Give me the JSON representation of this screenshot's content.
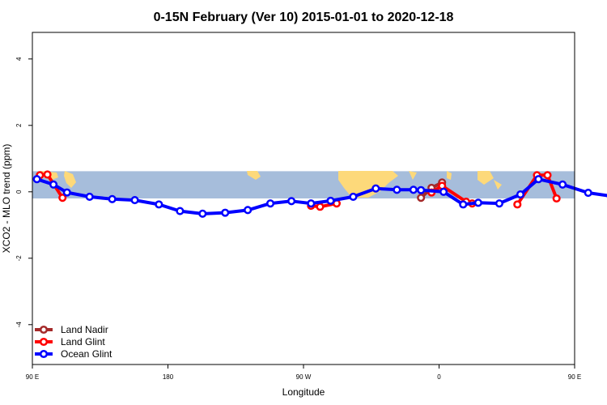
{
  "chart_data": {
    "type": "line",
    "title": "0-15N February (Ver 10)   2015-01-01 to 2020-12-18",
    "xlabel": "Longitude",
    "ylabel": "XCO2 - MLO trend (ppm)",
    "xlim": [
      90,
      450
    ],
    "ylim": [
      -5.2,
      4.8
    ],
    "x_ticks": [
      {
        "value": 90,
        "label": "90 E"
      },
      {
        "value": 180,
        "label": "180"
      },
      {
        "value": 270,
        "label": "90 W"
      },
      {
        "value": 360,
        "label": "0"
      },
      {
        "value": 450,
        "label": "90 E"
      },
      {
        "value": 540,
        "label": "180"
      }
    ],
    "y_ticks": [
      {
        "value": -4,
        "label": "-4"
      },
      {
        "value": -2,
        "label": "-2"
      },
      {
        "value": 0,
        "label": "0"
      },
      {
        "value": 2,
        "label": "2"
      },
      {
        "value": 4,
        "label": "4"
      }
    ],
    "map_band": {
      "lat_min": -0.2,
      "lat_max": 0.62,
      "ocean_color": "#a6bddb",
      "land_color": "#fdd97a"
    },
    "legend": {
      "position": "bottom-left"
    },
    "series": [
      {
        "name": "Land Nadir",
        "color": "#a52a2a",
        "segments": [
          {
            "x": [
              348,
              355,
              362
            ],
            "y": [
              -0.18,
              0.12,
              0.28
            ]
          }
        ]
      },
      {
        "name": "Land Glint",
        "color": "#ff0000",
        "segments": [
          {
            "x": [
              95,
              100,
              110
            ],
            "y": [
              0.5,
              0.52,
              -0.18
            ]
          },
          {
            "x": [
              275,
              281,
              292
            ],
            "y": [
              -0.42,
              -0.45,
              -0.35
            ]
          },
          {
            "x": [
              355,
              362,
              378,
              382
            ],
            "y": [
              -0.02,
              0.18,
              -0.3,
              -0.35
            ]
          },
          {
            "x": [
              412,
              425,
              432,
              438
            ],
            "y": [
              -0.38,
              0.5,
              0.5,
              -0.2
            ]
          }
        ]
      },
      {
        "name": "Ocean Glint",
        "color": "#0000ff",
        "segments": [
          {
            "x": [
              93,
              104,
              113,
              128,
              143,
              158,
              174,
              188,
              203,
              218,
              233,
              248,
              262,
              275,
              288,
              303,
              318,
              332,
              343,
              348,
              363,
              376,
              386,
              400,
              414,
              426,
              442,
              459,
              474,
              490,
              505,
              522
            ],
            "y": [
              0.38,
              0.22,
              -0.02,
              -0.15,
              -0.22,
              -0.25,
              -0.38,
              -0.58,
              -0.66,
              -0.63,
              -0.55,
              -0.35,
              -0.28,
              -0.35,
              -0.27,
              -0.15,
              0.1,
              0.06,
              0.06,
              0.05,
              0.0,
              -0.38,
              -0.33,
              -0.35,
              -0.08,
              0.38,
              0.22,
              -0.03,
              -0.13,
              -0.22,
              -0.25,
              -0.22
            ]
          }
        ]
      }
    ]
  }
}
